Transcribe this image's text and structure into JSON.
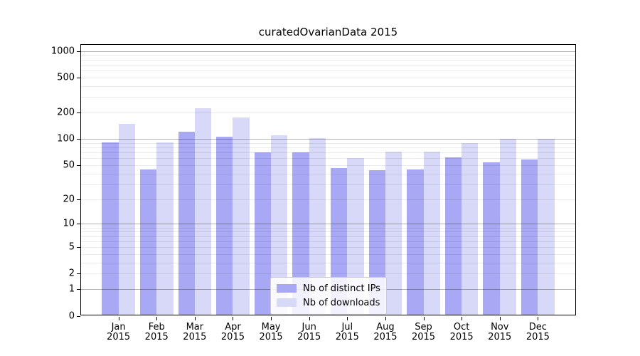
{
  "chart_data": {
    "type": "bar",
    "title": "curatedOvarianData 2015",
    "categories": [
      "Jan",
      "Feb",
      "Mar",
      "Apr",
      "May",
      "Jun",
      "Jul",
      "Aug",
      "Sep",
      "Oct",
      "Nov",
      "Dec"
    ],
    "year_label": "2015",
    "series": [
      {
        "name": "Nb of distinct IPs",
        "color": "#a8a8f5",
        "values": [
          92,
          45,
          122,
          107,
          70,
          70,
          46,
          44,
          45,
          62,
          54,
          58
        ]
      },
      {
        "name": "Nb of downloads",
        "color": "#d8d8f8",
        "values": [
          150,
          92,
          225,
          175,
          110,
          103,
          60,
          71,
          72,
          89,
          101,
          100
        ]
      }
    ],
    "yscale": "log1p",
    "yticks": [
      0,
      1,
      2,
      5,
      10,
      20,
      50,
      100,
      200,
      500,
      1000
    ],
    "major_grid_values": [
      1,
      10,
      100,
      1000
    ],
    "ylim": [
      0,
      1200
    ],
    "grid": true,
    "legend_position": "lower-center"
  },
  "colors": {
    "background": "#ffffff",
    "axis": "#000000",
    "major_grid": "rgba(0,0,0,0.30)",
    "minor_grid": "rgba(0,0,0,0.08)"
  }
}
